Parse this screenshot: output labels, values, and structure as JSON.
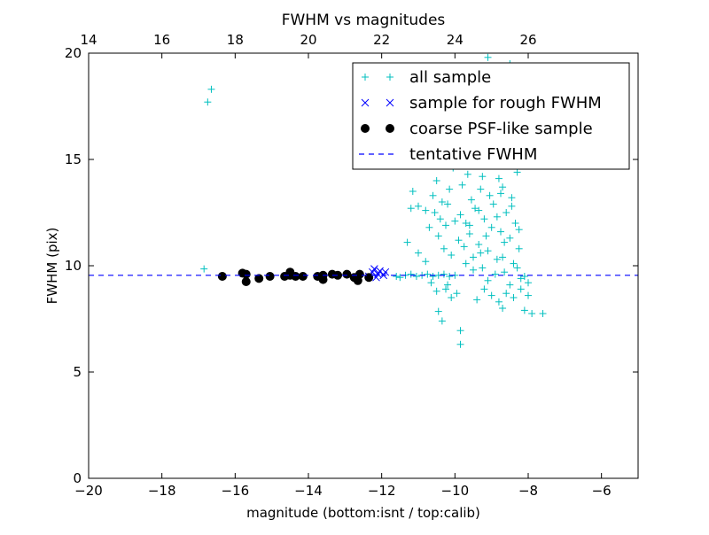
{
  "chart_data": {
    "type": "scatter",
    "title": "FWHM vs magnitudes",
    "xlabel": "magnitude (bottom:isnt / top:calib)",
    "ylabel": "FWHM (pix)",
    "xlim": [
      -20,
      -5
    ],
    "ylim": [
      0,
      20
    ],
    "x_ticks": [
      -20,
      -18,
      -16,
      -14,
      -12,
      -10,
      -8,
      -6
    ],
    "x_tick_labels": [
      "−20",
      "−18",
      "−16",
      "−14",
      "−12",
      "−10",
      "−8",
      "−6"
    ],
    "y_ticks": [
      0,
      5,
      10,
      15,
      20
    ],
    "y_tick_labels": [
      "0",
      "5",
      "10",
      "15",
      "20"
    ],
    "top_axis": {
      "offset": 34.0,
      "ticks": [
        14,
        16,
        18,
        20,
        22,
        24,
        26
      ],
      "tick_labels": [
        "14",
        "16",
        "18",
        "20",
        "22",
        "24",
        "26"
      ]
    },
    "grid": false,
    "legend_position": "top-right",
    "tentative_fwhm": 9.55,
    "series": [
      {
        "name": "all sample",
        "marker": "plus",
        "color": "#00bfbf",
        "points": [
          [
            -16.65,
            18.3
          ],
          [
            -16.75,
            17.7
          ],
          [
            -16.85,
            9.85
          ],
          [
            -11.6,
            9.5
          ],
          [
            -11.5,
            9.45
          ],
          [
            -11.35,
            9.55
          ],
          [
            -11.2,
            9.6
          ],
          [
            -11.05,
            9.5
          ],
          [
            -10.9,
            9.55
          ],
          [
            -10.75,
            9.6
          ],
          [
            -10.6,
            9.5
          ],
          [
            -10.45,
            9.55
          ],
          [
            -10.3,
            9.6
          ],
          [
            -10.15,
            9.5
          ],
          [
            -10.0,
            9.55
          ],
          [
            -11.2,
            12.7
          ],
          [
            -11.15,
            13.5
          ],
          [
            -11.0,
            12.8
          ],
          [
            -10.8,
            12.6
          ],
          [
            -10.7,
            11.8
          ],
          [
            -10.6,
            13.3
          ],
          [
            -10.55,
            12.5
          ],
          [
            -10.5,
            14.0
          ],
          [
            -10.45,
            11.4
          ],
          [
            -10.4,
            12.2
          ],
          [
            -10.35,
            13.0
          ],
          [
            -10.3,
            10.8
          ],
          [
            -10.25,
            11.9
          ],
          [
            -10.2,
            12.9
          ],
          [
            -10.15,
            13.6
          ],
          [
            -10.1,
            10.5
          ],
          [
            -10.05,
            14.6
          ],
          [
            -10.0,
            12.1
          ],
          [
            -11.3,
            11.1
          ],
          [
            -11.0,
            10.6
          ],
          [
            -10.8,
            10.2
          ],
          [
            -10.65,
            9.2
          ],
          [
            -10.5,
            8.8
          ],
          [
            -10.45,
            7.85
          ],
          [
            -10.35,
            7.4
          ],
          [
            -10.25,
            8.9
          ],
          [
            -10.2,
            9.1
          ],
          [
            -10.1,
            8.5
          ],
          [
            -9.85,
            6.95
          ],
          [
            -9.85,
            6.3
          ],
          [
            -9.95,
            8.7
          ],
          [
            -9.9,
            11.2
          ],
          [
            -9.85,
            12.4
          ],
          [
            -9.8,
            13.8
          ],
          [
            -9.75,
            10.9
          ],
          [
            -9.7,
            12.0
          ],
          [
            -9.65,
            14.3
          ],
          [
            -9.6,
            11.5
          ],
          [
            -9.55,
            13.1
          ],
          [
            -9.5,
            10.4
          ],
          [
            -9.45,
            12.7
          ],
          [
            -9.4,
            15.2
          ],
          [
            -9.35,
            11.0
          ],
          [
            -9.3,
            13.6
          ],
          [
            -9.25,
            9.9
          ],
          [
            -9.2,
            12.2
          ],
          [
            -9.15,
            14.9
          ],
          [
            -9.1,
            10.7
          ],
          [
            -9.05,
            13.3
          ],
          [
            -9.0,
            11.8
          ],
          [
            -8.95,
            12.9
          ],
          [
            -8.9,
            15.8
          ],
          [
            -8.85,
            10.3
          ],
          [
            -8.8,
            14.1
          ],
          [
            -8.75,
            11.6
          ],
          [
            -8.7,
            13.7
          ],
          [
            -8.65,
            9.7
          ],
          [
            -8.6,
            12.5
          ],
          [
            -8.55,
            15.5
          ],
          [
            -8.5,
            11.3
          ],
          [
            -8.45,
            13.2
          ],
          [
            -8.4,
            10.1
          ],
          [
            -8.35,
            12.0
          ],
          [
            -8.3,
            14.4
          ],
          [
            -8.25,
            10.8
          ],
          [
            -8.2,
            9.4
          ],
          [
            -9.7,
            10.1
          ],
          [
            -9.5,
            9.8
          ],
          [
            -9.3,
            10.6
          ],
          [
            -9.1,
            9.3
          ],
          [
            -8.9,
            9.6
          ],
          [
            -8.7,
            10.4
          ],
          [
            -8.5,
            9.1
          ],
          [
            -8.3,
            9.9
          ],
          [
            -8.1,
            9.5
          ],
          [
            -8.0,
            9.2
          ],
          [
            -9.4,
            8.4
          ],
          [
            -9.2,
            8.9
          ],
          [
            -9.0,
            8.6
          ],
          [
            -8.8,
            8.3
          ],
          [
            -8.6,
            8.7
          ],
          [
            -8.4,
            8.5
          ],
          [
            -8.2,
            8.9
          ],
          [
            -8.0,
            8.6
          ],
          [
            -8.7,
            8.0
          ],
          [
            -8.1,
            7.9
          ],
          [
            -7.9,
            7.75
          ],
          [
            -7.6,
            7.75
          ],
          [
            -9.6,
            16.5
          ],
          [
            -9.3,
            17.2
          ],
          [
            -9.0,
            16.8
          ],
          [
            -8.8,
            17.7
          ],
          [
            -8.6,
            16.2
          ],
          [
            -8.4,
            16.9
          ],
          [
            -9.2,
            18.4
          ],
          [
            -8.95,
            19.2
          ],
          [
            -8.7,
            18.0
          ],
          [
            -8.5,
            19.5
          ],
          [
            -9.1,
            19.8
          ],
          [
            -8.3,
            16.0
          ],
          [
            -9.6,
            11.9
          ],
          [
            -9.35,
            12.6
          ],
          [
            -9.15,
            11.4
          ],
          [
            -8.85,
            12.3
          ],
          [
            -8.65,
            11.1
          ],
          [
            -8.45,
            12.8
          ],
          [
            -8.25,
            11.7
          ],
          [
            -9.55,
            14.8
          ],
          [
            -9.25,
            14.2
          ],
          [
            -8.95,
            15.0
          ],
          [
            -8.75,
            13.4
          ],
          [
            -8.55,
            14.7
          ]
        ]
      },
      {
        "name": "sample for rough FWHM",
        "marker": "x",
        "color": "#0000ff",
        "points": [
          [
            -12.35,
            9.5
          ],
          [
            -12.25,
            9.7
          ],
          [
            -12.2,
            9.85
          ],
          [
            -12.15,
            9.45
          ],
          [
            -12.1,
            9.6
          ],
          [
            -12.05,
            9.75
          ],
          [
            -11.95,
            9.55
          ],
          [
            -11.9,
            9.7
          ]
        ]
      },
      {
        "name": "coarse PSF-like sample",
        "marker": "circle",
        "color": "#000000",
        "points": [
          [
            -16.35,
            9.5
          ],
          [
            -15.8,
            9.65
          ],
          [
            -15.7,
            9.6
          ],
          [
            -15.7,
            9.25
          ],
          [
            -15.35,
            9.4
          ],
          [
            -15.05,
            9.5
          ],
          [
            -14.65,
            9.5
          ],
          [
            -14.5,
            9.7
          ],
          [
            -14.5,
            9.55
          ],
          [
            -14.35,
            9.5
          ],
          [
            -14.15,
            9.5
          ],
          [
            -13.75,
            9.5
          ],
          [
            -13.6,
            9.55
          ],
          [
            -13.6,
            9.35
          ],
          [
            -13.35,
            9.6
          ],
          [
            -13.2,
            9.55
          ],
          [
            -12.95,
            9.6
          ],
          [
            -12.75,
            9.45
          ],
          [
            -12.65,
            9.3
          ],
          [
            -12.6,
            9.6
          ],
          [
            -12.35,
            9.45
          ]
        ]
      },
      {
        "name": "tentative FWHM",
        "marker": "dashed-line",
        "color": "#0000ff"
      }
    ]
  }
}
